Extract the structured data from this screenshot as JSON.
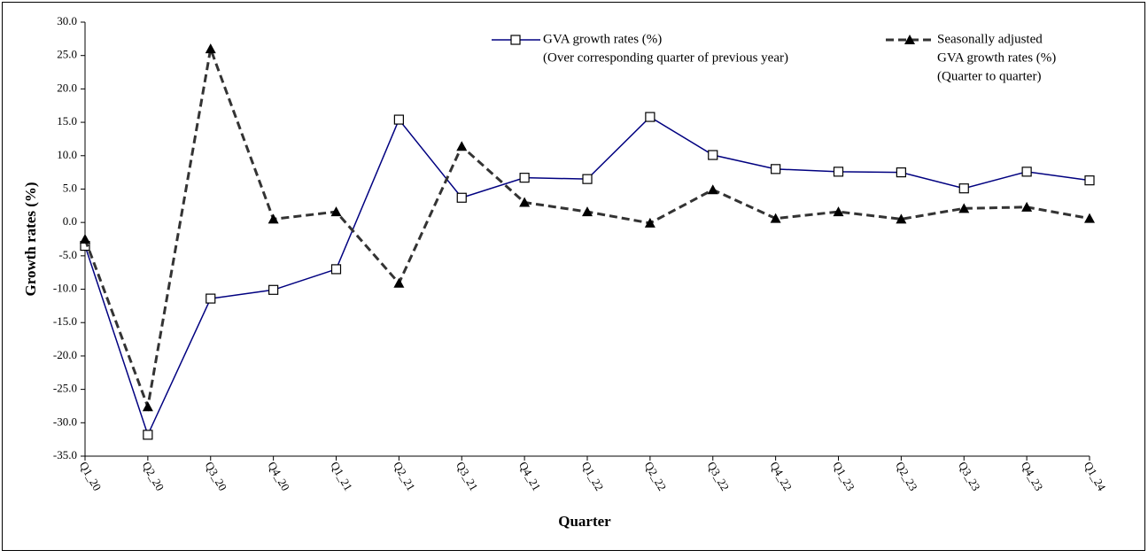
{
  "chart_data": {
    "type": "line",
    "x_label": "Quarter",
    "y_label": "Growth rates (%)",
    "categories": [
      "Q1_20",
      "Q2_20",
      "Q3_20",
      "Q4_20",
      "Q1_21",
      "Q2_21",
      "Q3_21",
      "Q4_21",
      "Q1_22",
      "Q2_22",
      "Q3_22",
      "Q4_22",
      "Q1_23",
      "Q2_23",
      "Q3_23",
      "Q4_23",
      "Q1_24"
    ],
    "series": [
      {
        "name": [
          "GVA growth rates (%)",
          "(Over corresponding quarter of previous year)"
        ],
        "color": "#000080",
        "dashed": false,
        "marker": "square",
        "values": [
          -3.5,
          -31.8,
          -11.4,
          -10.1,
          -7.0,
          15.4,
          3.7,
          6.7,
          6.5,
          15.8,
          10.1,
          8.0,
          7.6,
          7.5,
          5.1,
          7.6,
          6.3
        ]
      },
      {
        "name": [
          "Seasonally adjusted",
          "GVA growth rates (%)",
          "(Quarter to quarter)"
        ],
        "color": "#333333",
        "dashed": true,
        "marker": "triangle",
        "values": [
          -2.5,
          -27.6,
          26.0,
          0.5,
          1.6,
          -9.1,
          11.4,
          3.0,
          1.6,
          -0.1,
          4.9,
          0.6,
          1.6,
          0.5,
          2.1,
          2.3,
          0.6
        ]
      }
    ],
    "ylim": [
      -35,
      30
    ],
    "yticks": [
      {
        "value": -35,
        "label": "-35.0"
      },
      {
        "value": -30,
        "label": "-30.0"
      },
      {
        "value": -25,
        "label": "-25.0"
      },
      {
        "value": -20,
        "label": "-20.0"
      },
      {
        "value": -15,
        "label": "-15.0"
      },
      {
        "value": -10,
        "label": "-10.0"
      },
      {
        "value": -5,
        "label": "-5.0"
      },
      {
        "value": 0,
        "label": "0.0"
      },
      {
        "value": 5,
        "label": "5.0"
      },
      {
        "value": 10,
        "label": "10.0"
      },
      {
        "value": 15,
        "label": "15.0"
      },
      {
        "value": 20,
        "label": "20.0"
      },
      {
        "value": 25,
        "label": "25.0"
      },
      {
        "value": 30,
        "label": "30.0"
      }
    ],
    "grid": false
  }
}
